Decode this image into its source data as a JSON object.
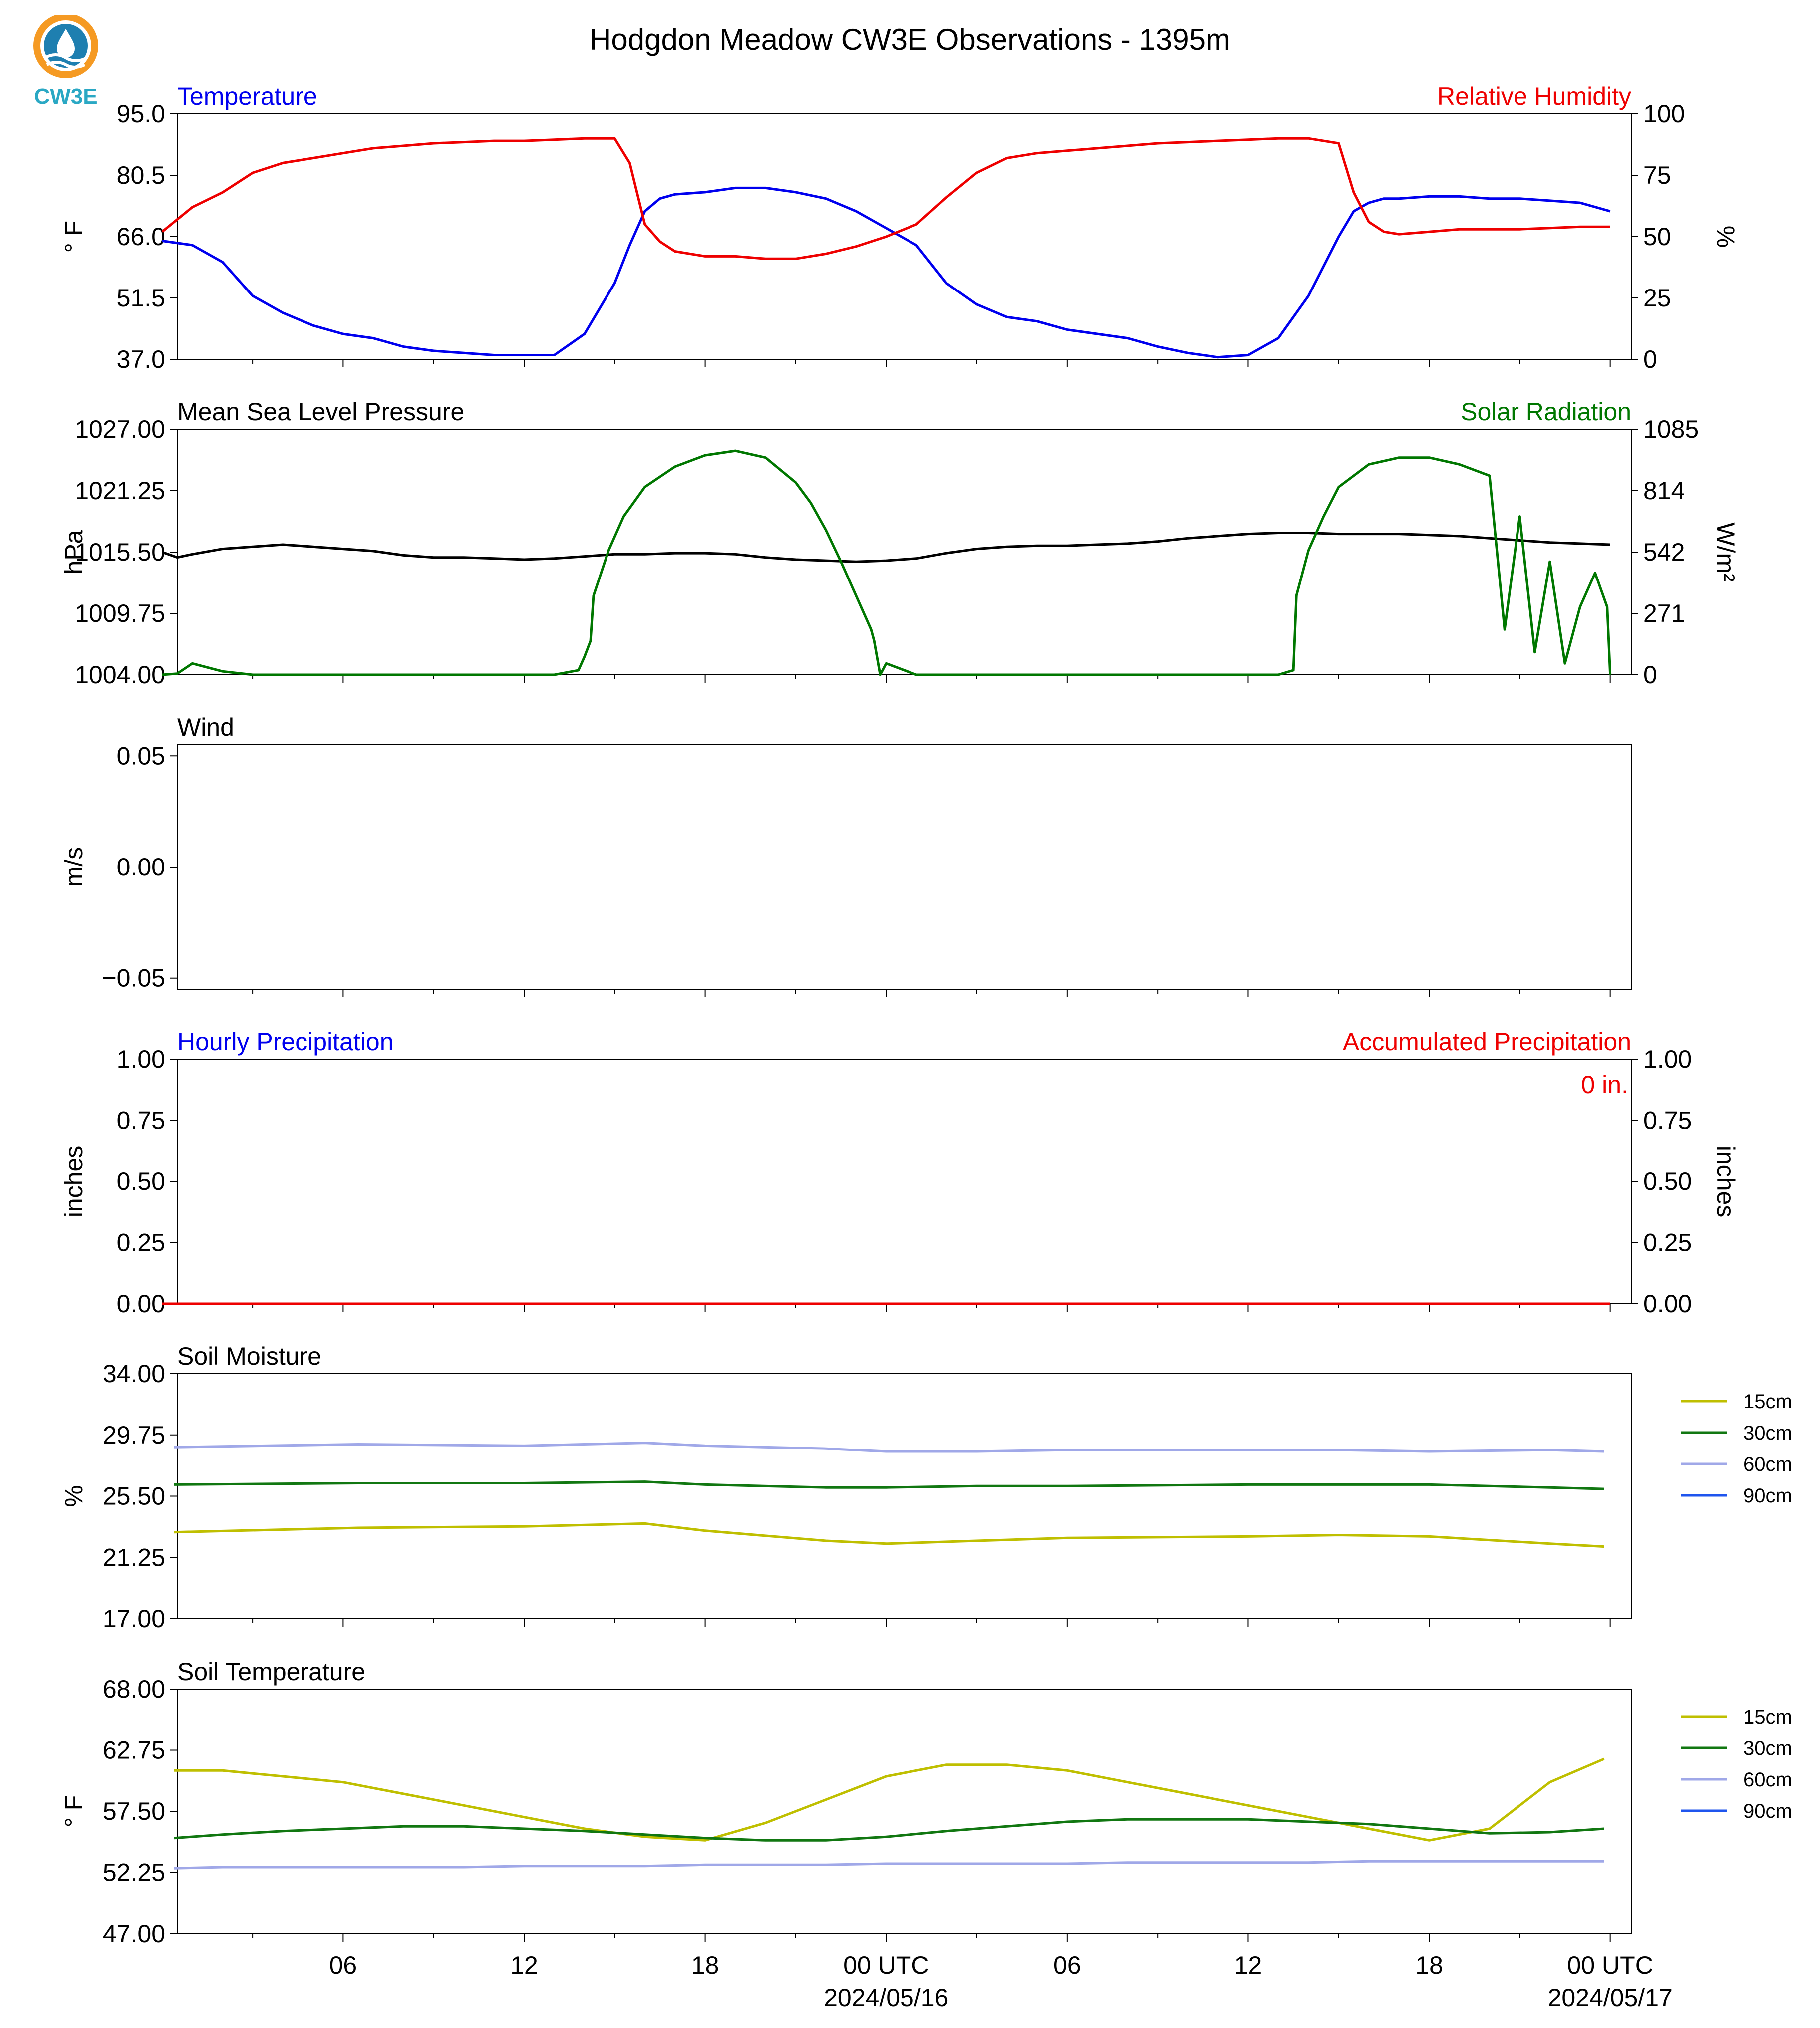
{
  "figure": {
    "title": "Hodgdon Meadow CW3E Observations - 1395m",
    "logo_text": "CW3E",
    "colors": {
      "temp": "#0000ee",
      "rh": "#ee0000",
      "pressure": "#000000",
      "solar": "#007700",
      "soil15": "#bfbf00",
      "soil30": "#117711",
      "soil60": "#a0a8e8",
      "soil90": "#1f55ee",
      "logo_orange": "#f59a23",
      "logo_blue": "#1e7fb0",
      "logo_teal": "#2aa8c4"
    },
    "x_ticks": [
      "06",
      "12",
      "18",
      "00 UTC",
      "06",
      "12",
      "18",
      "00 UTC"
    ],
    "date_labels": [
      "2024/05/16",
      "2024/05/17"
    ]
  },
  "chart_data": [
    {
      "type": "line",
      "title_left": "Temperature",
      "title_right": "Relative Humidity",
      "ylabel_left": "° F",
      "ylabel_right": "%",
      "ylim_left": [
        37.0,
        95.0
      ],
      "ylim_right": [
        0,
        100
      ],
      "yticks_left": [
        "37.0",
        "51.5",
        "66.0",
        "80.5",
        "95.0"
      ],
      "yticks_right": [
        "0",
        "25",
        "50",
        "75",
        "100"
      ],
      "x_hours": [
        0,
        1,
        2,
        3,
        4,
        5,
        6,
        7,
        8,
        9,
        10,
        11,
        12,
        13,
        14,
        15,
        15.5,
        16,
        16.5,
        17,
        18,
        19,
        20,
        21,
        22,
        23,
        24,
        25,
        26,
        27,
        28,
        29,
        30,
        31,
        32,
        33,
        34,
        35,
        36,
        37,
        38,
        39,
        39.5,
        40,
        40.5,
        41,
        42,
        43,
        44,
        45,
        46,
        47,
        48
      ],
      "series": [
        {
          "name": "Temperature",
          "axis": "left",
          "values": [
            65,
            64,
            60,
            52,
            48,
            45,
            43,
            42,
            40,
            39,
            38.5,
            38,
            38,
            38,
            43,
            55,
            64,
            72,
            75,
            76,
            76.5,
            77.5,
            77.5,
            76.5,
            75,
            72,
            68,
            64,
            55,
            50,
            47,
            46,
            44,
            43,
            42,
            40,
            38.5,
            37.5,
            38,
            42,
            52,
            66,
            72,
            74,
            75,
            75,
            75.5,
            75.5,
            75,
            75,
            74.5,
            74,
            72
          ]
        },
        {
          "name": "Relative Humidity",
          "axis": "right",
          "values": [
            52,
            62,
            68,
            76,
            80,
            82,
            84,
            86,
            87,
            88,
            88.5,
            89,
            89,
            89.5,
            90,
            90,
            80,
            55,
            48,
            44,
            42,
            42,
            41,
            41,
            43,
            46,
            50,
            55,
            66,
            76,
            82,
            84,
            85,
            86,
            87,
            88,
            88.5,
            89,
            89.5,
            90,
            90,
            88,
            68,
            56,
            52,
            51,
            52,
            53,
            53,
            53,
            53.5,
            54,
            54
          ]
        }
      ]
    },
    {
      "type": "line",
      "title_left": "Mean Sea Level Pressure",
      "title_right": "Solar Radiation",
      "ylabel_left": "hPa",
      "ylabel_right": "W/m²",
      "ylim_left": [
        1004.0,
        1027.0
      ],
      "ylim_right": [
        0,
        1085
      ],
      "yticks_left": [
        "1004.00",
        "1009.75",
        "1015.50",
        "1021.25",
        "1027.00"
      ],
      "yticks_right": [
        "0",
        "271",
        "542",
        "814",
        "1085"
      ],
      "series": [
        {
          "name": "Mean Sea Level Pressure",
          "axis": "left",
          "x_hours": [
            0,
            0.5,
            1,
            2,
            3,
            4,
            5,
            6,
            7,
            8,
            9,
            10,
            11,
            12,
            13,
            14,
            15,
            16,
            17,
            18,
            19,
            20,
            21,
            22,
            23,
            24,
            25,
            26,
            27,
            28,
            29,
            30,
            31,
            32,
            33,
            34,
            35,
            36,
            37,
            38,
            39,
            40,
            41,
            42,
            43,
            44,
            45,
            46,
            47,
            48
          ],
          "values": [
            1015.5,
            1015.0,
            1015.3,
            1015.8,
            1016.0,
            1016.2,
            1016.0,
            1015.8,
            1015.6,
            1015.2,
            1015.0,
            1015.0,
            1014.9,
            1014.8,
            1014.9,
            1015.1,
            1015.3,
            1015.3,
            1015.4,
            1015.4,
            1015.3,
            1015.0,
            1014.8,
            1014.7,
            1014.6,
            1014.7,
            1014.9,
            1015.4,
            1015.8,
            1016.0,
            1016.1,
            1016.1,
            1016.2,
            1016.3,
            1016.5,
            1016.8,
            1017.0,
            1017.2,
            1017.3,
            1017.3,
            1017.2,
            1017.2,
            1017.2,
            1017.1,
            1017.0,
            1016.8,
            1016.6,
            1016.4,
            1016.3,
            1016.2
          ]
        },
        {
          "name": "Solar Radiation",
          "axis": "right",
          "x_hours": [
            0,
            0.5,
            1,
            2,
            3,
            6,
            9,
            12,
            13,
            13.8,
            14,
            14.2,
            14.3,
            14.8,
            15.3,
            16,
            17,
            18,
            19,
            20,
            21,
            21.5,
            22,
            22.5,
            23,
            23.5,
            23.6,
            23.8,
            24,
            25,
            26,
            30,
            35,
            37,
            37.5,
            37.6,
            37.8,
            38,
            38.5,
            39,
            40,
            41,
            42,
            43,
            44,
            44.5,
            45,
            45.5,
            46,
            46.5,
            47,
            47.5,
            47.9,
            48
          ],
          "values": [
            0,
            5,
            50,
            15,
            0,
            0,
            0,
            0,
            0,
            20,
            80,
            150,
            350,
            550,
            700,
            830,
            920,
            970,
            990,
            960,
            850,
            760,
            640,
            500,
            350,
            200,
            150,
            0,
            50,
            0,
            0,
            0,
            0,
            0,
            20,
            350,
            450,
            550,
            700,
            830,
            930,
            960,
            960,
            930,
            880,
            200,
            700,
            100,
            500,
            50,
            300,
            450,
            300,
            0
          ]
        }
      ]
    },
    {
      "type": "line",
      "title_left": "Wind",
      "ylabel_left": "m/s",
      "ylim_left": [
        -0.055,
        0.055
      ],
      "yticks_left": [
        "−0.05",
        "0.00",
        "0.05"
      ],
      "series": []
    },
    {
      "type": "line",
      "title_left": "Hourly Precipitation",
      "title_right": "Accumulated Precipitation",
      "annotation": "0 in.",
      "ylabel_left": "inches",
      "ylabel_right": "inches",
      "ylim_left": [
        0,
        1.0
      ],
      "ylim_right": [
        0,
        1.0
      ],
      "yticks_left": [
        "0.00",
        "0.25",
        "0.50",
        "0.75",
        "1.00"
      ],
      "yticks_right": [
        "0.00",
        "0.25",
        "0.50",
        "0.75",
        "1.00"
      ],
      "x_hours": [
        0,
        48
      ],
      "series": [
        {
          "name": "Hourly Precipitation",
          "axis": "left",
          "values": [
            0,
            0
          ]
        },
        {
          "name": "Accumulated Precipitation",
          "axis": "right",
          "values": [
            0,
            0
          ]
        }
      ]
    },
    {
      "type": "line",
      "title_left": "Soil Moisture",
      "ylabel_left": "%",
      "ylim_left": [
        17.0,
        34.0
      ],
      "yticks_left": [
        "17.00",
        "21.25",
        "25.50",
        "29.75",
        "34.00"
      ],
      "legend": [
        "15cm",
        "30cm",
        "60cm",
        "90cm"
      ],
      "x_hours": [
        0.4,
        6.5,
        12,
        16,
        18,
        22,
        24,
        27,
        30,
        36,
        39,
        42,
        46,
        47.8
      ],
      "series": [
        {
          "name": "15cm",
          "values": [
            23.0,
            23.3,
            23.4,
            23.6,
            23.1,
            22.4,
            22.2,
            22.4,
            22.6,
            22.7,
            22.8,
            22.7,
            22.2,
            22.0
          ]
        },
        {
          "name": "30cm",
          "values": [
            26.3,
            26.4,
            26.4,
            26.5,
            26.3,
            26.1,
            26.1,
            26.2,
            26.2,
            26.3,
            26.3,
            26.3,
            26.1,
            26.0
          ]
        },
        {
          "name": "60cm",
          "values": [
            28.9,
            29.1,
            29.0,
            29.2,
            29.0,
            28.8,
            28.6,
            28.6,
            28.7,
            28.7,
            28.7,
            28.6,
            28.7,
            28.6
          ]
        },
        {
          "name": "90cm",
          "values": []
        }
      ]
    },
    {
      "type": "line",
      "title_left": "Soil Temperature",
      "ylabel_left": "° F",
      "ylim_left": [
        47.0,
        68.0
      ],
      "yticks_left": [
        "47.00",
        "52.25",
        "57.50",
        "62.75",
        "68.00"
      ],
      "legend": [
        "15cm",
        "30cm",
        "60cm",
        "90cm"
      ],
      "x_hours": [
        0.4,
        2,
        4,
        6,
        8,
        10,
        12,
        14,
        16,
        18,
        20,
        22,
        24,
        26,
        28,
        30,
        32,
        34,
        36,
        38,
        40,
        42,
        44,
        46,
        47.8
      ],
      "series": [
        {
          "name": "15cm",
          "values": [
            61.0,
            61.0,
            60.5,
            60.0,
            59.0,
            58.0,
            57.0,
            56.0,
            55.3,
            55.0,
            56.5,
            58.5,
            60.5,
            61.5,
            61.5,
            61.0,
            60.0,
            59.0,
            58.0,
            57.0,
            56.0,
            55.0,
            56.0,
            60.0,
            62.0
          ]
        },
        {
          "name": "30cm",
          "values": [
            55.2,
            55.5,
            55.8,
            56.0,
            56.2,
            56.2,
            56.0,
            55.8,
            55.5,
            55.2,
            55.0,
            55.0,
            55.3,
            55.8,
            56.2,
            56.6,
            56.8,
            56.8,
            56.8,
            56.6,
            56.4,
            56.0,
            55.6,
            55.7,
            56.0
          ]
        },
        {
          "name": "60cm",
          "values": [
            52.6,
            52.7,
            52.7,
            52.7,
            52.7,
            52.7,
            52.8,
            52.8,
            52.8,
            52.9,
            52.9,
            52.9,
            53.0,
            53.0,
            53.0,
            53.0,
            53.1,
            53.1,
            53.1,
            53.1,
            53.2,
            53.2,
            53.2,
            53.2,
            53.2
          ]
        },
        {
          "name": "90cm",
          "values": []
        }
      ]
    }
  ]
}
